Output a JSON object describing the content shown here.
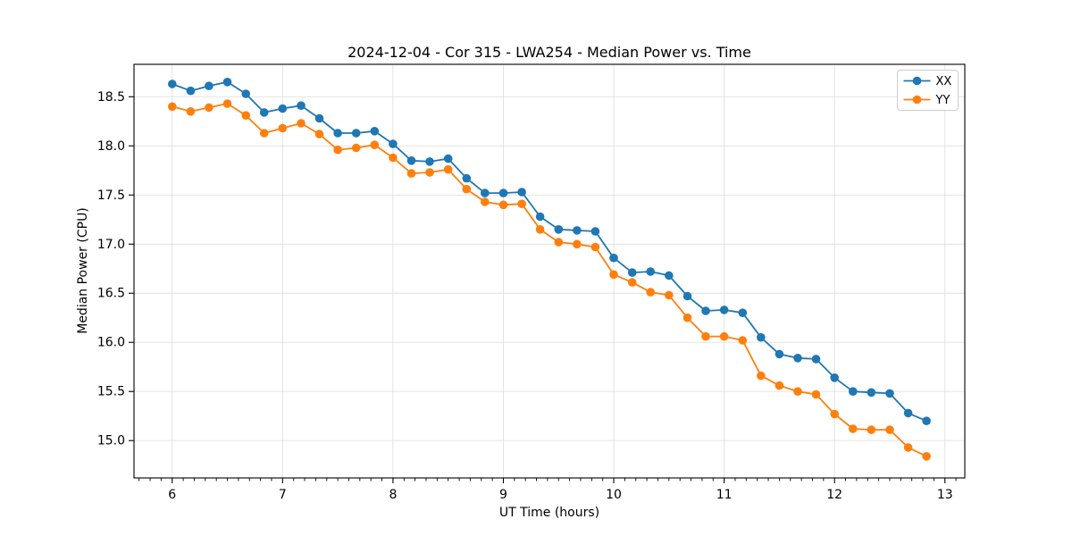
{
  "chart_data": {
    "type": "line",
    "title": "2024-12-04 - Cor 315 - LWA254 - Median Power vs. Time",
    "xlabel": "UT Time (hours)",
    "ylabel": "Median Power (CPU)",
    "xlim": [
      5.654,
      13.18
    ],
    "ylim": [
      14.62,
      18.83
    ],
    "xticks": [
      6,
      7,
      8,
      9,
      10,
      11,
      12,
      13
    ],
    "yticks": [
      15.0,
      15.5,
      16.0,
      16.5,
      17.0,
      17.5,
      18.0,
      18.5
    ],
    "x_minor_tick_step": 0.1,
    "grid": true,
    "legend": {
      "position": "upper right"
    },
    "x": [
      6.0,
      6.167,
      6.333,
      6.5,
      6.667,
      6.833,
      7.0,
      7.167,
      7.333,
      7.5,
      7.667,
      7.833,
      8.0,
      8.167,
      8.333,
      8.5,
      8.667,
      8.833,
      9.0,
      9.167,
      9.333,
      9.5,
      9.667,
      9.833,
      10.0,
      10.167,
      10.333,
      10.5,
      10.667,
      10.833,
      11.0,
      11.167,
      11.333,
      11.5,
      11.667,
      11.833,
      12.0,
      12.167,
      12.333,
      12.5,
      12.667,
      12.833
    ],
    "series": [
      {
        "name": "XX",
        "color": "#1f77b4",
        "marker": "circle",
        "values": [
          18.63,
          18.56,
          18.61,
          18.65,
          18.53,
          18.34,
          18.38,
          18.41,
          18.28,
          18.13,
          18.13,
          18.15,
          18.02,
          17.85,
          17.84,
          17.87,
          17.67,
          17.52,
          17.52,
          17.53,
          17.28,
          17.15,
          17.14,
          17.13,
          16.86,
          16.71,
          16.72,
          16.68,
          16.47,
          16.32,
          16.33,
          16.3,
          16.05,
          15.88,
          15.84,
          15.83,
          15.64,
          15.5,
          15.49,
          15.48,
          15.28,
          15.2
        ]
      },
      {
        "name": "YY",
        "color": "#ff7f0e",
        "marker": "circle",
        "values": [
          18.4,
          18.35,
          18.39,
          18.43,
          18.31,
          18.13,
          18.18,
          18.23,
          18.12,
          17.96,
          17.98,
          18.01,
          17.88,
          17.72,
          17.73,
          17.76,
          17.56,
          17.43,
          17.4,
          17.41,
          17.15,
          17.02,
          17.0,
          16.97,
          16.69,
          16.61,
          16.51,
          16.48,
          16.25,
          16.06,
          16.06,
          16.02,
          15.66,
          15.56,
          15.5,
          15.47,
          15.27,
          15.12,
          15.11,
          15.11,
          14.93,
          14.84
        ]
      }
    ],
    "colors": {
      "grid": "#e0e0e0",
      "spine": "#000000",
      "tick": "#000000",
      "legend_border": "#cccccc",
      "background": "#ffffff"
    }
  }
}
